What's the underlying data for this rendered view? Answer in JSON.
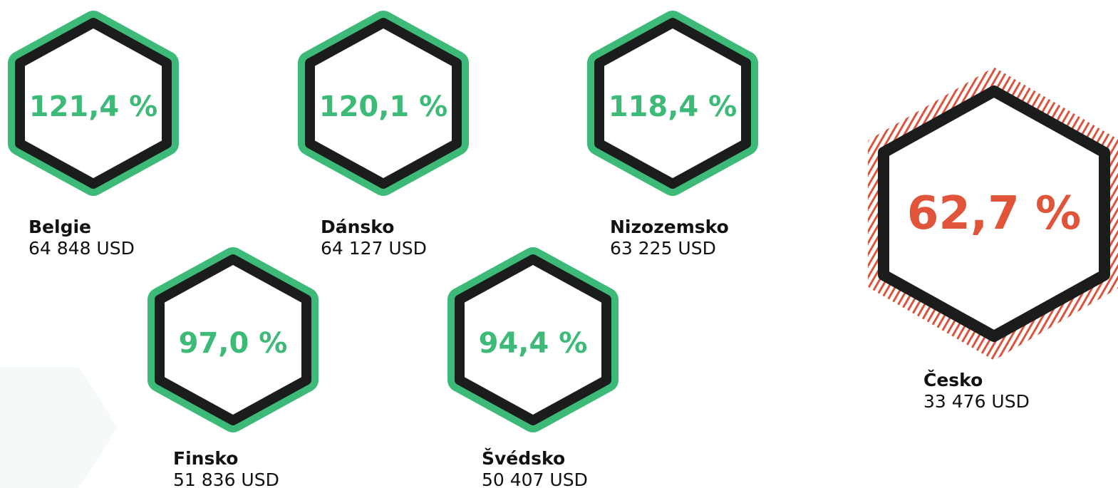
{
  "items": [
    {
      "value": "121,4 %",
      "country": "Belgie",
      "gdp": "64 848 USD"
    },
    {
      "value": "120,1 %",
      "country": "Dánsko",
      "gdp": "64 127 USD"
    },
    {
      "value": "118,4 %",
      "country": "Nizozemsko",
      "gdp": "63 225 USD"
    },
    {
      "value": "97,0 %",
      "country": "Finsko",
      "gdp": "51 836 USD"
    },
    {
      "value": "94,4 %",
      "country": "Švédsko",
      "gdp": "50 407 USD"
    },
    {
      "value": "62,7 %",
      "country": "Česko",
      "gdp": "33 476 USD"
    }
  ]
}
